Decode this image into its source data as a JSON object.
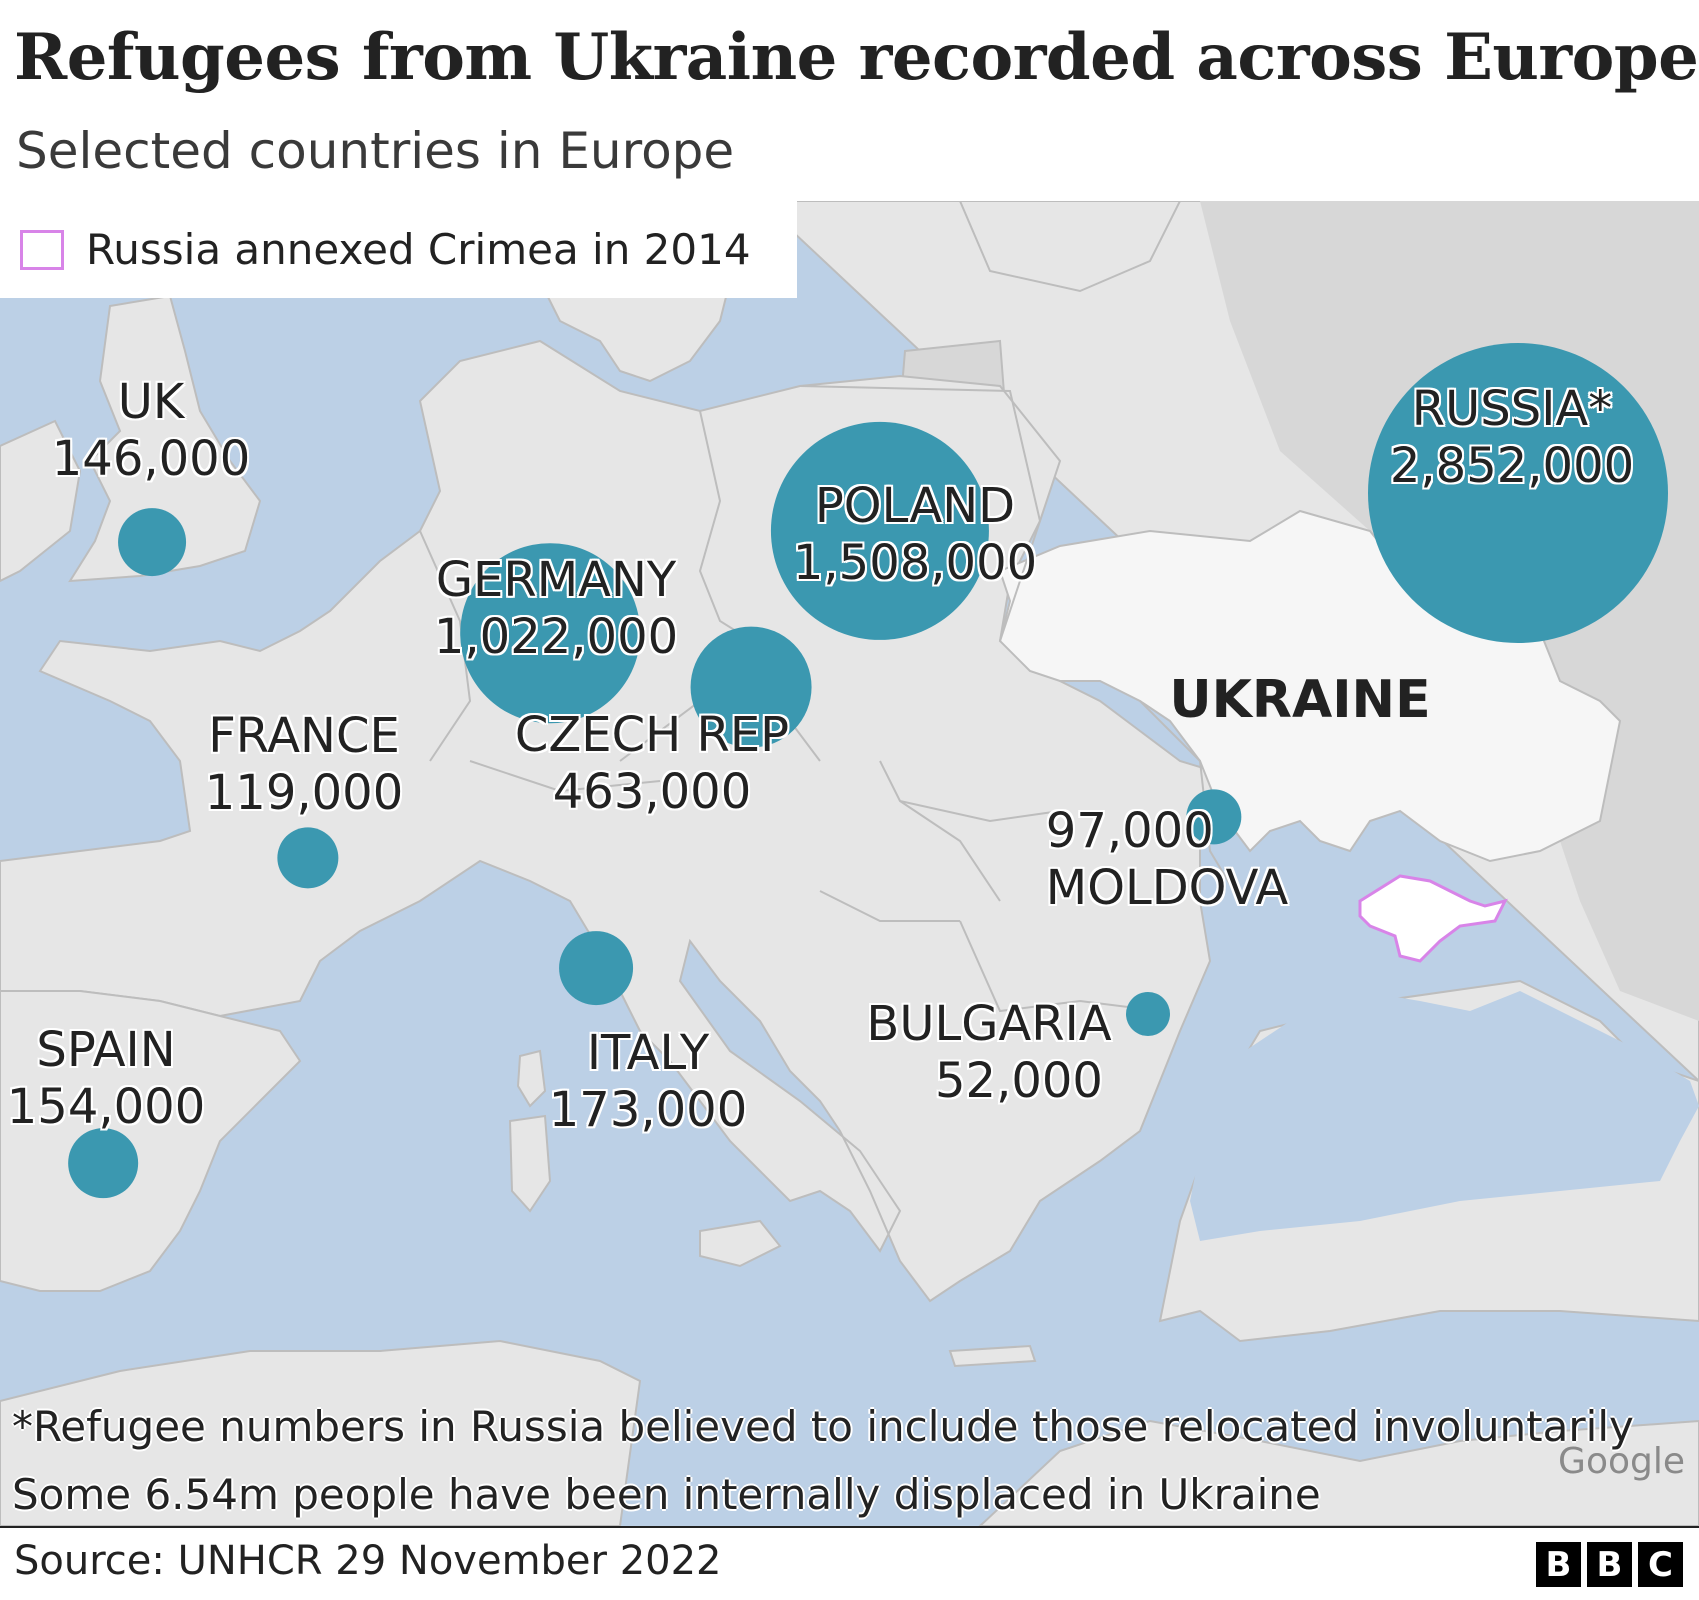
{
  "title": "Refugees from Ukraine recorded across Europe",
  "subtitle": "Selected countries in Europe",
  "legend": {
    "label": "Russia annexed Crimea in 2014",
    "swatch_color": "#d884e8"
  },
  "colors": {
    "bubble": "#3b98b0",
    "land": "#e6e6e6",
    "sea": "#bcd0e6",
    "ukraine": "#f6f6f6",
    "russia": "#d7d7d7"
  },
  "map": {
    "ukraine_label": "UKRAINE",
    "attribution": "Google",
    "countries": [
      {
        "id": "uk",
        "name": "UK",
        "value": "146,000",
        "refugees": 146000
      },
      {
        "id": "germany",
        "name": "GERMANY",
        "value": "1,022,000",
        "refugees": 1022000
      },
      {
        "id": "poland",
        "name": "POLAND",
        "value": "1,508,000",
        "refugees": 1508000
      },
      {
        "id": "russia",
        "name": "RUSSIA*",
        "value": "2,852,000",
        "refugees": 2852000
      },
      {
        "id": "czech-rep",
        "name": "CZECH REP",
        "value": "463,000",
        "refugees": 463000
      },
      {
        "id": "france",
        "name": "FRANCE",
        "value": "119,000",
        "refugees": 119000
      },
      {
        "id": "moldova",
        "name": "MOLDOVA",
        "value": "97,000",
        "refugees": 97000
      },
      {
        "id": "italy",
        "name": "ITALY",
        "value": "173,000",
        "refugees": 173000
      },
      {
        "id": "bulgaria",
        "name": "BULGARIA",
        "value": "52,000",
        "refugees": 52000
      },
      {
        "id": "spain",
        "name": "SPAIN",
        "value": "154,000",
        "refugees": 154000
      }
    ]
  },
  "notes": [
    "*Refugee numbers in Russia believed to include those relocated involuntarily",
    "Some 6.54m people have been internally displaced in Ukraine"
  ],
  "source": "Source: UNHCR 29 November 2022",
  "brand": [
    "B",
    "B",
    "C"
  ]
}
